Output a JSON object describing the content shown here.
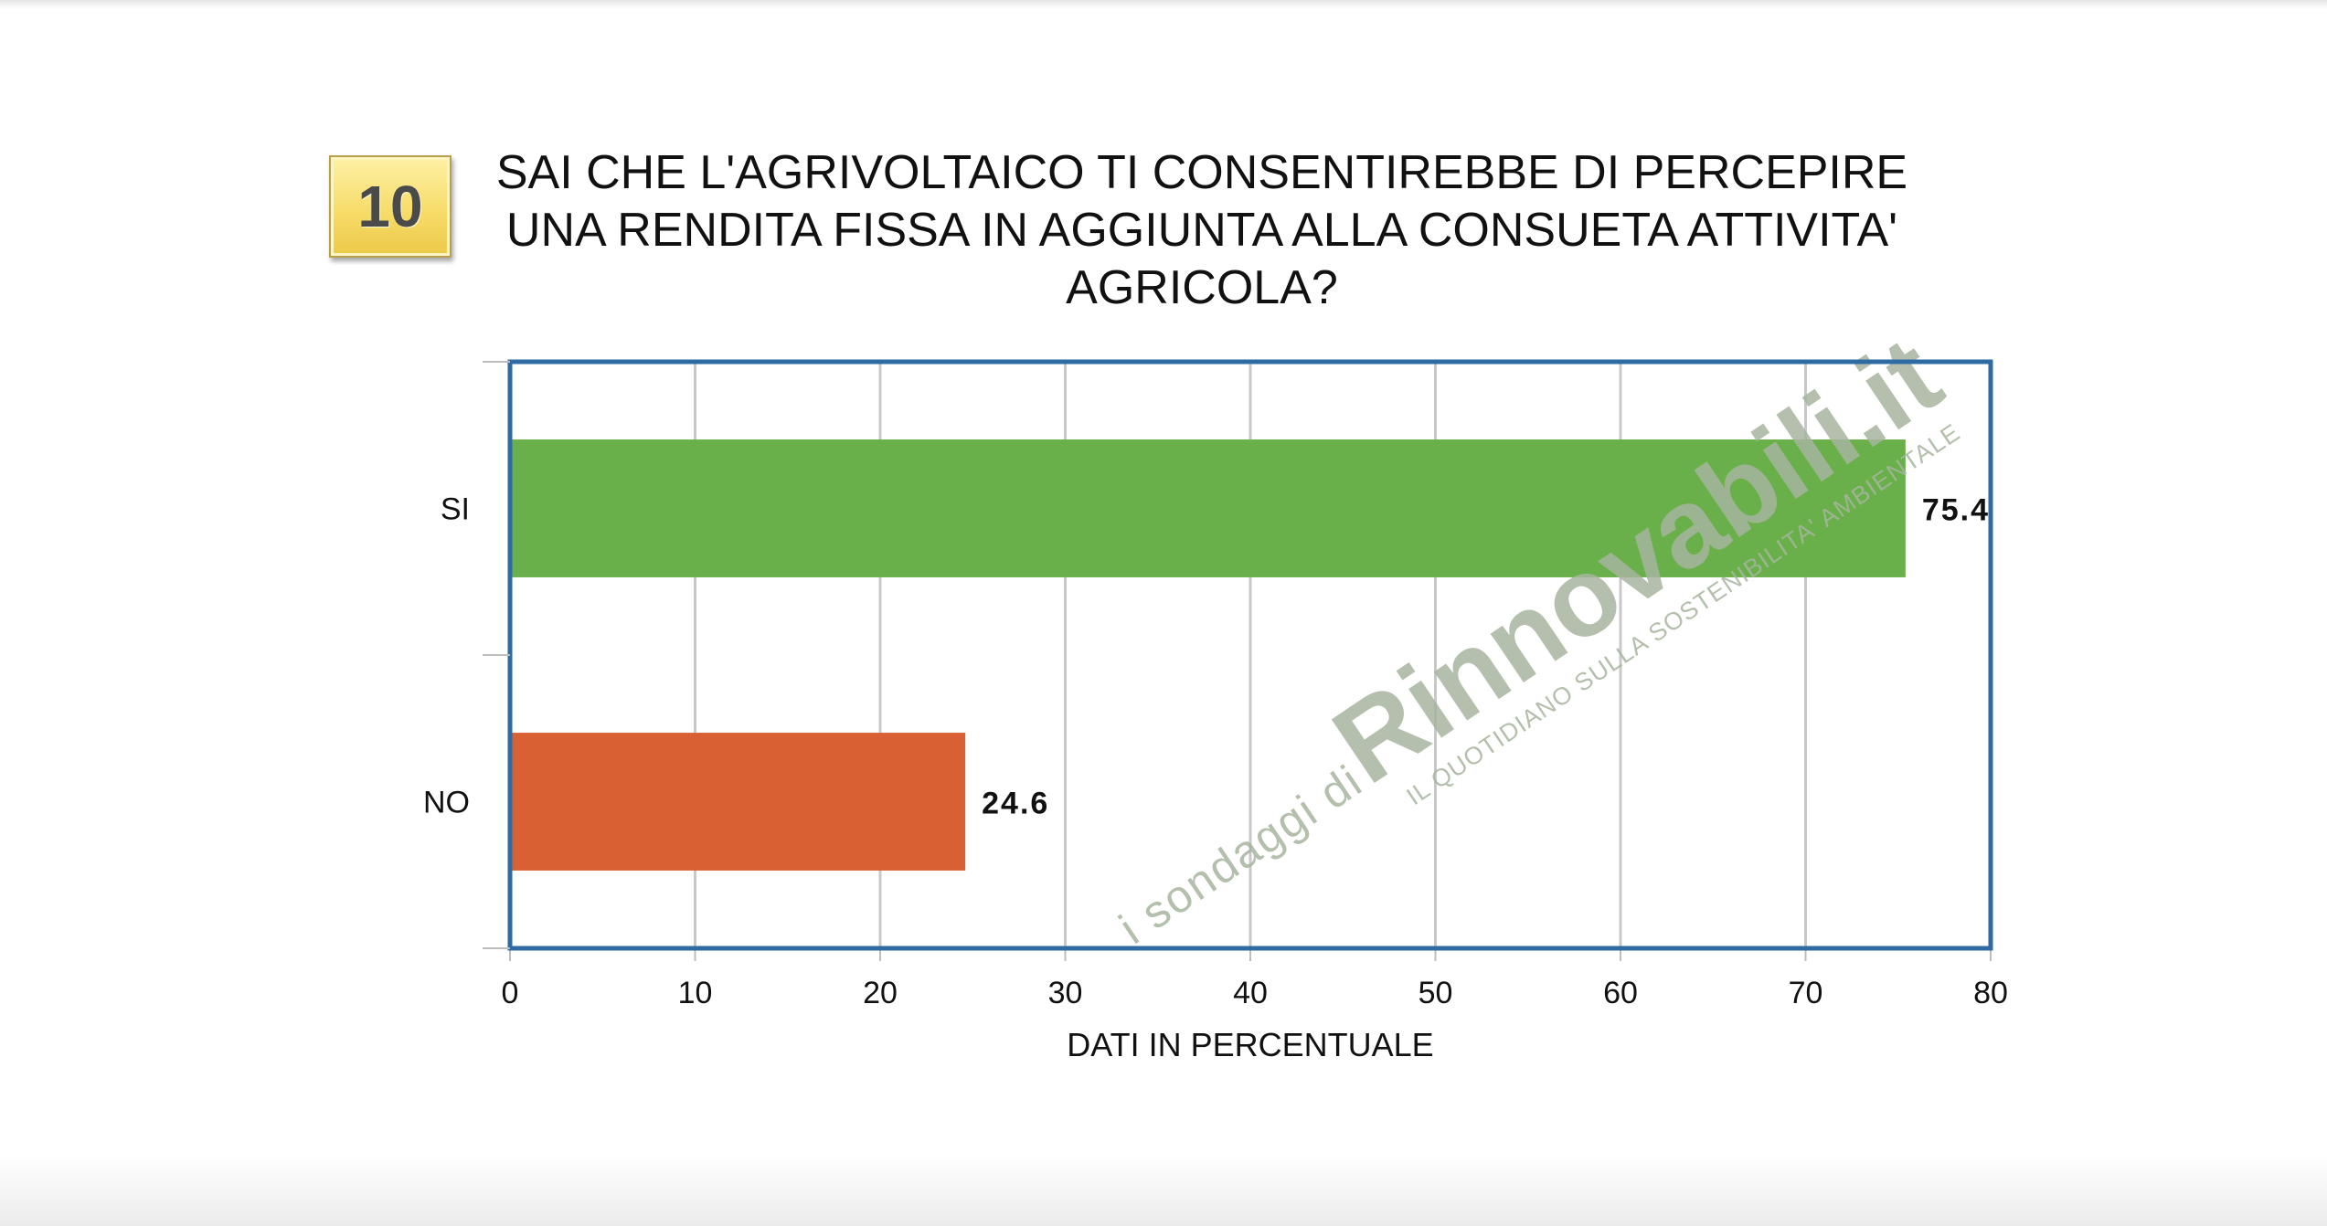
{
  "question": {
    "number": "10",
    "title_lines": [
      "SAI CHE L'AGRIVOLTAICO  TI CONSENTIREBBE DI PERCEPIRE",
      "UNA RENDITA FISSA IN AGGIUNTA  ALLA CONSUETA  ATTIVITA'",
      "AGRICOLA?"
    ]
  },
  "chart_data": {
    "type": "bar",
    "orientation": "horizontal",
    "categories": [
      "SI",
      "NO"
    ],
    "values": [
      75.4,
      24.6
    ],
    "value_labels": [
      "75.4",
      "24.6"
    ],
    "bar_colors": [
      "#6ab04a",
      "#d96032"
    ],
    "xlabel": "DATI IN PERCENTUALE",
    "ylabel": "",
    "xlim": [
      0,
      80
    ],
    "xticks": [
      0,
      10,
      20,
      30,
      40,
      50,
      60,
      70,
      80
    ],
    "grid": true,
    "frame_color": "#2f6aa3",
    "grid_color": "#c8c8c8",
    "legend": "none"
  },
  "watermark": {
    "prefix": "i sondaggi di ",
    "brand": "Rinnovabili.it",
    "tagline": "IL QUOTIDIANO SULLA SOSTENIBILITA' AMBIENTALE",
    "color": "#a7b59f"
  }
}
